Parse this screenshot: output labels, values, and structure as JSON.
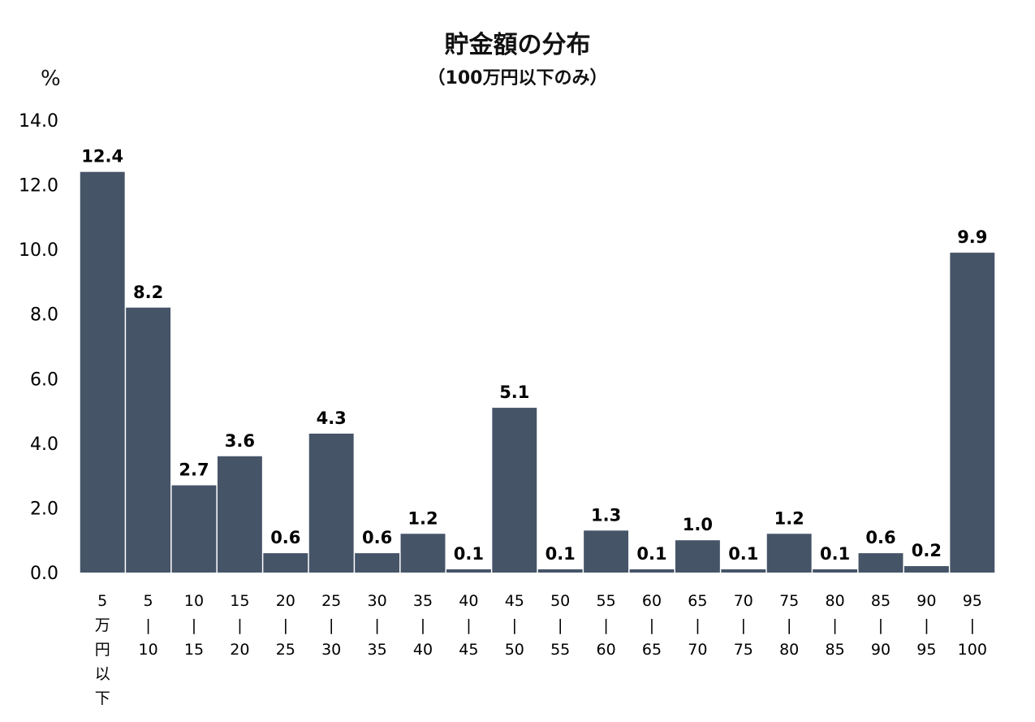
{
  "chart_data": {
    "type": "bar",
    "title": "貯金額の分布",
    "subtitle": "（100万円以下のみ）",
    "ylabel": "%",
    "ylim": [
      0,
      14
    ],
    "yticks": [
      "0.0",
      "2.0",
      "4.0",
      "6.0",
      "8.0",
      "10.0",
      "12.0",
      "14.0"
    ],
    "grid": false,
    "legend": "none",
    "bar_color": "#465468",
    "categories": [
      {
        "lines": [
          "5",
          "万",
          "円",
          "以",
          "下"
        ],
        "value": 12.4,
        "label": "12.4"
      },
      {
        "lines": [
          "5",
          "|",
          "10"
        ],
        "value": 8.2,
        "label": "8.2"
      },
      {
        "lines": [
          "10",
          "|",
          "15"
        ],
        "value": 2.7,
        "label": "2.7"
      },
      {
        "lines": [
          "15",
          "|",
          "20"
        ],
        "value": 3.6,
        "label": "3.6"
      },
      {
        "lines": [
          "20",
          "|",
          "25"
        ],
        "value": 0.6,
        "label": "0.6"
      },
      {
        "lines": [
          "25",
          "|",
          "30"
        ],
        "value": 4.3,
        "label": "4.3"
      },
      {
        "lines": [
          "30",
          "|",
          "35"
        ],
        "value": 0.6,
        "label": "0.6"
      },
      {
        "lines": [
          "35",
          "|",
          "40"
        ],
        "value": 1.2,
        "label": "1.2"
      },
      {
        "lines": [
          "40",
          "|",
          "45"
        ],
        "value": 0.1,
        "label": "0.1"
      },
      {
        "lines": [
          "45",
          "|",
          "50"
        ],
        "value": 5.1,
        "label": "5.1"
      },
      {
        "lines": [
          "50",
          "|",
          "55"
        ],
        "value": 0.1,
        "label": "0.1"
      },
      {
        "lines": [
          "55",
          "|",
          "60"
        ],
        "value": 1.3,
        "label": "1.3"
      },
      {
        "lines": [
          "60",
          "|",
          "65"
        ],
        "value": 0.1,
        "label": "0.1"
      },
      {
        "lines": [
          "65",
          "|",
          "70"
        ],
        "value": 1.0,
        "label": "1.0"
      },
      {
        "lines": [
          "70",
          "|",
          "75"
        ],
        "value": 0.1,
        "label": "0.1"
      },
      {
        "lines": [
          "75",
          "|",
          "80"
        ],
        "value": 1.2,
        "label": "1.2"
      },
      {
        "lines": [
          "80",
          "|",
          "85"
        ],
        "value": 0.1,
        "label": "0.1"
      },
      {
        "lines": [
          "85",
          "|",
          "90"
        ],
        "value": 0.6,
        "label": "0.6"
      },
      {
        "lines": [
          "90",
          "|",
          "95"
        ],
        "value": 0.2,
        "label": "0.2"
      },
      {
        "lines": [
          "95",
          "|",
          "100"
        ],
        "value": 9.9,
        "label": "9.9"
      }
    ]
  }
}
